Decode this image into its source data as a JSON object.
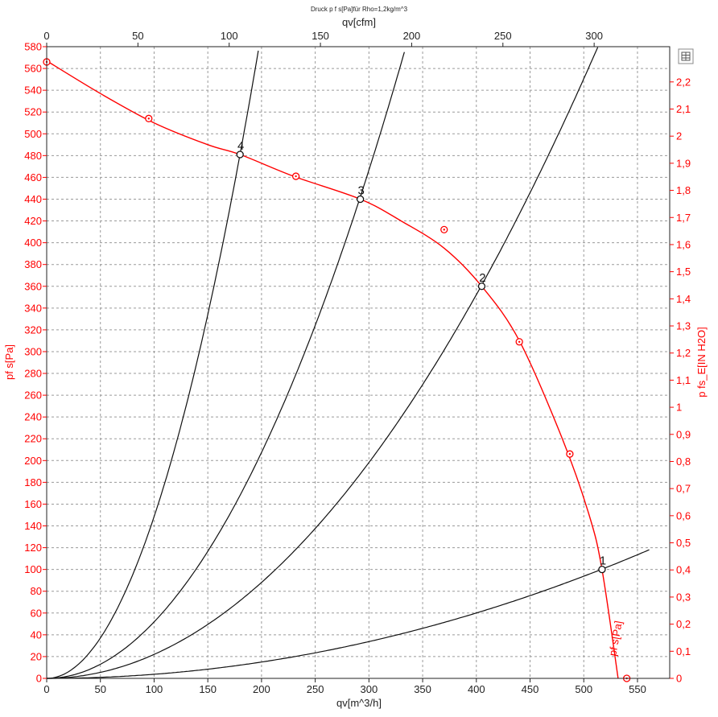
{
  "chart_data": {
    "type": "line",
    "title": "Druck p f s[Pa]für Rho=1,2kg/m^3",
    "xlabel": "qv[m^3/h]",
    "x2label": "qv[cfm]",
    "ylabel": "pf s[Pa]",
    "y2label": "p fs_E[IN H2O]",
    "fan_curve_label": "pf s[Pa]",
    "xlim": [
      0,
      580
    ],
    "ylim": [
      0,
      580
    ],
    "x2lim": [
      0,
      341.4
    ],
    "y2lim": [
      0,
      2.33
    ],
    "grid": true,
    "x_ticks": [
      "0",
      "50",
      "100",
      "150",
      "200",
      "250",
      "300",
      "350",
      "400",
      "450",
      "500",
      "550"
    ],
    "x_tick_values": [
      0,
      50,
      100,
      150,
      200,
      250,
      300,
      350,
      400,
      450,
      500,
      550
    ],
    "y_ticks": [
      "0",
      "20",
      "40",
      "60",
      "80",
      "100",
      "120",
      "140",
      "160",
      "180",
      "200",
      "220",
      "240",
      "260",
      "280",
      "300",
      "320",
      "340",
      "360",
      "380",
      "400",
      "420",
      "440",
      "460",
      "480",
      "500",
      "520",
      "540",
      "560",
      "580"
    ],
    "y_tick_values": [
      0,
      20,
      40,
      60,
      80,
      100,
      120,
      140,
      160,
      180,
      200,
      220,
      240,
      260,
      280,
      300,
      320,
      340,
      360,
      380,
      400,
      420,
      440,
      460,
      480,
      500,
      520,
      540,
      560,
      580
    ],
    "x2_ticks": [
      "0",
      "50",
      "100",
      "150",
      "200",
      "250",
      "300"
    ],
    "x2_tick_values": [
      0,
      50,
      100,
      150,
      200,
      250,
      300
    ],
    "y2_ticks": [
      "0",
      "0,1",
      "0,2",
      "0,3",
      "0,4",
      "0,5",
      "0,6",
      "0,7",
      "0,8",
      "0,9",
      "1",
      "1,1",
      "1,2",
      "1,3",
      "1,4",
      "1,5",
      "1,6",
      "1,7",
      "1,8",
      "1,9",
      "2",
      "2,1",
      "2,2"
    ],
    "y2_tick_values": [
      0,
      0.1,
      0.2,
      0.3,
      0.4,
      0.5,
      0.6,
      0.7,
      0.8,
      0.9,
      1,
      1.1,
      1.2,
      1.3,
      1.4,
      1.5,
      1.6,
      1.7,
      1.8,
      1.9,
      2,
      2.1,
      2.2
    ],
    "fan_curve": {
      "color": "#ff0000",
      "x": [
        0,
        50,
        100,
        150,
        180,
        230,
        292,
        330,
        370,
        405,
        440,
        480,
        505,
        517,
        532
      ],
      "y": [
        567,
        537,
        510,
        490,
        481,
        461,
        440,
        420,
        395,
        360,
        310,
        220,
        150,
        100,
        0
      ]
    },
    "measured_points": {
      "color": "#ff0000",
      "x": [
        0,
        95,
        232,
        370,
        440,
        487,
        540
      ],
      "y": [
        566,
        514,
        461,
        412,
        309,
        206,
        0
      ]
    },
    "system_curves": [
      {
        "label": "4",
        "k": 0.01485,
        "x_max": 197,
        "x": [
          180
        ],
        "y": [
          481
        ]
      },
      {
        "label": "3",
        "k": 0.005186,
        "x_max": 333,
        "x": [
          292
        ],
        "y": [
          440
        ]
      },
      {
        "label": "2",
        "k": 0.002202,
        "x_max": 513,
        "x": [
          405
        ],
        "y": [
          360
        ]
      },
      {
        "label": "1",
        "k": 0.0003752,
        "x_max": 561,
        "x": [
          517
        ],
        "y": [
          100
        ]
      }
    ],
    "operating_points": [
      {
        "label": "1",
        "x": 517,
        "y": 100
      },
      {
        "label": "2",
        "x": 405,
        "y": 360
      },
      {
        "label": "3",
        "x": 292,
        "y": 440
      },
      {
        "label": "4",
        "x": 180,
        "y": 481
      }
    ]
  },
  "toolbar": {
    "export_icon": "table-export-icon"
  }
}
